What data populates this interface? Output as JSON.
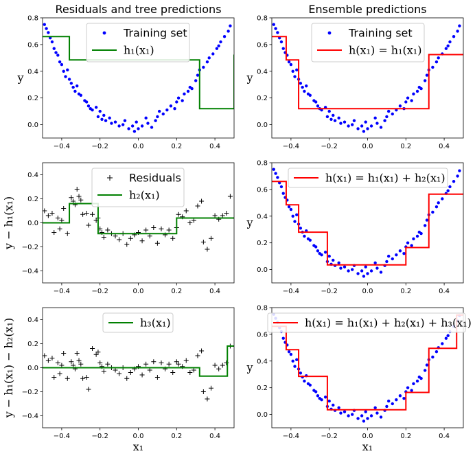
{
  "chart_data": [
    {
      "type": "scatter",
      "title": "Residuals and tree predictions",
      "xlabel": "",
      "ylabel": "y",
      "xlim": [
        -0.5,
        0.5
      ],
      "ylim": [
        -0.1,
        0.8
      ],
      "xticks": [
        -0.4,
        -0.2,
        0.0,
        0.2,
        0.4
      ],
      "xticklabels": [
        "−0.4",
        "−0.2",
        "0.0",
        "0.2",
        "0.4"
      ],
      "yticks": [
        0.0,
        0.2,
        0.4,
        0.6,
        0.8
      ],
      "yticklabels": [
        "0.0",
        "0.2",
        "0.4",
        "0.6",
        "0.8"
      ],
      "points_series": "training",
      "points_color": "#0000ff",
      "points_marker": "dot",
      "legend": {
        "position": "upper-center",
        "entries": [
          {
            "label": "Training set",
            "marker": "dot",
            "color": "#0000ff"
          },
          {
            "label": "h₁(x₁)",
            "marker": "line",
            "color": "#008000"
          }
        ]
      },
      "step": {
        "color": "#008000",
        "breaks": [
          -0.36,
          0.32
        ],
        "levels": [
          0.66,
          0.485,
          0.12,
          0.525
        ],
        "lead": -0.425
      }
    },
    {
      "type": "scatter",
      "title": "Ensemble predictions",
      "xlabel": "",
      "ylabel": "y",
      "xlim": [
        -0.5,
        0.5
      ],
      "ylim": [
        -0.1,
        0.8
      ],
      "xticks": [
        -0.4,
        -0.2,
        0.0,
        0.2,
        0.4
      ],
      "xticklabels": [
        "−0.4",
        "−0.2",
        "0.0",
        "0.2",
        "0.4"
      ],
      "yticks": [
        0.0,
        0.2,
        0.4,
        0.6,
        0.8
      ],
      "yticklabels": [
        "0.0",
        "0.2",
        "0.4",
        "0.6",
        "0.8"
      ],
      "points_series": "training",
      "points_color": "#0000ff",
      "points_marker": "dot",
      "legend": {
        "position": "upper-center",
        "entries": [
          {
            "label": "Training set",
            "marker": "dot",
            "color": "#0000ff"
          },
          {
            "label": "h(x₁) = h₁(x₁)",
            "marker": "line",
            "color": "#ff0000"
          }
        ]
      },
      "step": {
        "color": "#ff0000",
        "breaks": [
          -0.425,
          -0.36,
          0.32
        ],
        "levels": [
          0.66,
          0.485,
          0.12,
          0.525
        ]
      }
    },
    {
      "type": "scatter",
      "title": "",
      "xlabel": "",
      "ylabel": "y − h₁(x₁)",
      "xlim": [
        -0.5,
        0.5
      ],
      "ylim": [
        -0.5,
        0.5
      ],
      "xticks": [
        -0.4,
        -0.2,
        0.0,
        0.2,
        0.4
      ],
      "xticklabels": [
        "−0.4",
        "−0.2",
        "0.0",
        "0.2",
        "0.4"
      ],
      "yticks": [
        -0.4,
        -0.2,
        0.0,
        0.2,
        0.4
      ],
      "yticklabels": [
        "−0.4",
        "−0.2",
        "0.0",
        "0.2",
        "0.4"
      ],
      "points_series": "residuals1",
      "points_color": "#000000",
      "points_marker": "plus",
      "legend": {
        "position": "upper-center",
        "entries": [
          {
            "label": "Residuals",
            "marker": "plus",
            "color": "#000000"
          },
          {
            "label": "h₂(x₁)",
            "marker": "line",
            "color": "#008000"
          }
        ]
      },
      "step": {
        "color": "#008000",
        "breaks": [
          -0.36,
          -0.21,
          0.2
        ],
        "levels": [
          0.0,
          0.16,
          -0.09,
          0.04
        ]
      }
    },
    {
      "type": "scatter",
      "title": "",
      "xlabel": "",
      "ylabel": "y",
      "xlim": [
        -0.5,
        0.5
      ],
      "ylim": [
        -0.1,
        0.8
      ],
      "xticks": [
        -0.4,
        -0.2,
        0.0,
        0.2,
        0.4
      ],
      "xticklabels": [
        "−0.4",
        "−0.2",
        "0.0",
        "0.2",
        "0.4"
      ],
      "yticks": [
        0.0,
        0.2,
        0.4,
        0.6,
        0.8
      ],
      "yticklabels": [
        "0.0",
        "0.2",
        "0.4",
        "0.6",
        "0.8"
      ],
      "points_series": "training",
      "points_color": "#0000ff",
      "points_marker": "dot",
      "legend": {
        "position": "upper-center",
        "entries": [
          {
            "label": "h(x₁) = h₁(x₁) + h₂(x₁)",
            "marker": "line",
            "color": "#ff0000"
          }
        ]
      },
      "step": {
        "color": "#ff0000",
        "breaks": [
          -0.425,
          -0.36,
          -0.21,
          0.2,
          0.32
        ],
        "levels": [
          0.66,
          0.485,
          0.28,
          0.035,
          0.165,
          0.565
        ]
      }
    },
    {
      "type": "scatter",
      "title": "",
      "xlabel": "x₁",
      "ylabel": "y − h₁(x₁) − h₂(x₁)",
      "xlim": [
        -0.5,
        0.5
      ],
      "ylim": [
        -0.5,
        0.5
      ],
      "xticks": [
        -0.4,
        -0.2,
        0.0,
        0.2,
        0.4
      ],
      "xticklabels": [
        "−0.4",
        "−0.2",
        "0.0",
        "0.2",
        "0.4"
      ],
      "yticks": [
        -0.4,
        -0.2,
        0.0,
        0.2,
        0.4
      ],
      "yticklabels": [
        "−0.4",
        "−0.2",
        "0.0",
        "0.2",
        "0.4"
      ],
      "points_series": "residuals2",
      "points_color": "#000000",
      "points_marker": "plus",
      "legend": {
        "position": "upper-center",
        "entries": [
          {
            "label": "h₃(x₁)",
            "marker": "line",
            "color": "#008000"
          }
        ]
      },
      "step": {
        "color": "#008000",
        "breaks": [
          0.32,
          0.465
        ],
        "levels": [
          0.0,
          -0.07,
          0.18
        ]
      }
    },
    {
      "type": "scatter",
      "title": "",
      "xlabel": "x₁",
      "ylabel": "y",
      "xlim": [
        -0.5,
        0.5
      ],
      "ylim": [
        -0.1,
        0.8
      ],
      "xticks": [
        -0.4,
        -0.2,
        0.0,
        0.2,
        0.4
      ],
      "xticklabels": [
        "−0.4",
        "−0.2",
        "0.0",
        "0.2",
        "0.4"
      ],
      "yticks": [
        0.0,
        0.2,
        0.4,
        0.6,
        0.8
      ],
      "yticklabels": [
        "0.0",
        "0.2",
        "0.4",
        "0.6",
        "0.8"
      ],
      "points_series": "training",
      "points_color": "#0000ff",
      "points_marker": "dot",
      "legend": {
        "position": "upper-center",
        "entries": [
          {
            "label": "h(x₁) = h₁(x₁) + h₂(x₁) + h₃(x₁)",
            "marker": "line",
            "color": "#ff0000"
          }
        ]
      },
      "step": {
        "color": "#ff0000",
        "breaks": [
          -0.425,
          -0.36,
          -0.21,
          0.2,
          0.32,
          0.465
        ],
        "levels": [
          0.66,
          0.485,
          0.285,
          0.035,
          0.165,
          0.495,
          0.745
        ]
      }
    }
  ],
  "series_data": {
    "training": {
      "x": [
        -0.49,
        -0.48,
        -0.47,
        -0.46,
        -0.45,
        -0.44,
        -0.43,
        -0.42,
        -0.41,
        -0.4,
        -0.39,
        -0.38,
        -0.37,
        -0.36,
        -0.35,
        -0.34,
        -0.33,
        -0.32,
        -0.31,
        -0.3,
        -0.28,
        -0.27,
        -0.26,
        -0.25,
        -0.24,
        -0.22,
        -0.21,
        -0.2,
        -0.19,
        -0.18,
        -0.17,
        -0.15,
        -0.14,
        -0.12,
        -0.1,
        -0.08,
        -0.07,
        -0.05,
        -0.03,
        -0.02,
        -0.01,
        0.0,
        0.02,
        0.04,
        0.05,
        0.07,
        0.09,
        0.1,
        0.11,
        0.13,
        0.15,
        0.17,
        0.19,
        0.2,
        0.21,
        0.23,
        0.24,
        0.26,
        0.27,
        0.28,
        0.3,
        0.31,
        0.32,
        0.34,
        0.36,
        0.37,
        0.39,
        0.41,
        0.42,
        0.43,
        0.45,
        0.47,
        0.48
      ],
      "y": [
        0.75,
        0.72,
        0.69,
        0.65,
        0.62,
        0.57,
        0.54,
        0.52,
        0.47,
        0.45,
        0.4,
        0.36,
        0.41,
        0.34,
        0.31,
        0.28,
        0.25,
        0.29,
        0.23,
        0.22,
        0.18,
        0.17,
        0.14,
        0.12,
        0.11,
        0.13,
        0.06,
        0.1,
        0.04,
        0.07,
        0.03,
        0.05,
        0.01,
        0.02,
        -0.01,
        0.0,
        0.03,
        -0.03,
        -0.01,
        -0.05,
        0.02,
        -0.03,
        -0.01,
        0.05,
        0.01,
        -0.02,
        0.03,
        0.06,
        0.1,
        0.08,
        0.11,
        0.14,
        0.12,
        0.17,
        0.2,
        0.18,
        0.23,
        0.25,
        0.28,
        0.27,
        0.33,
        0.37,
        0.41,
        0.43,
        0.47,
        0.5,
        0.53,
        0.57,
        0.59,
        0.62,
        0.66,
        0.7,
        0.74
      ]
    },
    "residuals1": {
      "x": [
        -0.49,
        -0.47,
        -0.45,
        -0.44,
        -0.42,
        -0.41,
        -0.4,
        -0.39,
        -0.37,
        -0.35,
        -0.34,
        -0.33,
        -0.32,
        -0.31,
        -0.3,
        -0.29,
        -0.27,
        -0.26,
        -0.24,
        -0.22,
        -0.21,
        -0.2,
        -0.19,
        -0.18,
        -0.16,
        -0.14,
        -0.12,
        -0.1,
        -0.08,
        -0.06,
        -0.04,
        -0.02,
        0.0,
        0.02,
        0.04,
        0.06,
        0.08,
        0.1,
        0.12,
        0.14,
        0.16,
        0.18,
        0.2,
        0.21,
        0.23,
        0.25,
        0.27,
        0.29,
        0.31,
        0.33,
        0.34,
        0.36,
        0.38,
        0.4,
        0.42,
        0.44,
        0.46,
        0.48
      ],
      "y": [
        0.1,
        0.06,
        0.08,
        -0.08,
        0.04,
        -0.05,
        0.02,
        0.12,
        -0.09,
        0.21,
        0.18,
        0.15,
        0.28,
        0.22,
        0.19,
        0.07,
        0.08,
        -0.02,
        0.07,
        0.02,
        0.04,
        -0.05,
        -0.08,
        -0.12,
        -0.06,
        -0.09,
        -0.11,
        -0.14,
        -0.09,
        -0.18,
        -0.13,
        -0.1,
        -0.08,
        -0.15,
        -0.06,
        -0.11,
        -0.04,
        -0.17,
        -0.05,
        -0.1,
        -0.06,
        -0.13,
        -0.04,
        0.07,
        0.05,
        0.1,
        0.0,
        0.02,
        0.14,
        0.18,
        -0.16,
        -0.22,
        -0.13,
        0.06,
        0.03,
        0.06,
        0.08,
        0.22
      ]
    },
    "residuals2": {
      "x": [
        -0.49,
        -0.47,
        -0.45,
        -0.44,
        -0.42,
        -0.41,
        -0.4,
        -0.39,
        -0.37,
        -0.35,
        -0.34,
        -0.33,
        -0.32,
        -0.31,
        -0.3,
        -0.29,
        -0.27,
        -0.26,
        -0.24,
        -0.22,
        -0.21,
        -0.2,
        -0.19,
        -0.18,
        -0.16,
        -0.14,
        -0.12,
        -0.1,
        -0.08,
        -0.06,
        -0.04,
        -0.02,
        0.0,
        0.02,
        0.04,
        0.06,
        0.08,
        0.1,
        0.12,
        0.14,
        0.16,
        0.18,
        0.2,
        0.21,
        0.23,
        0.25,
        0.27,
        0.29,
        0.31,
        0.33,
        0.34,
        0.36,
        0.38,
        0.4,
        0.42,
        0.44,
        0.46,
        0.48
      ],
      "y": [
        0.1,
        0.06,
        0.08,
        -0.08,
        0.04,
        -0.05,
        0.02,
        0.12,
        -0.09,
        0.05,
        0.02,
        -0.01,
        0.12,
        0.06,
        0.03,
        -0.09,
        -0.08,
        -0.18,
        0.16,
        0.11,
        0.13,
        0.04,
        0.01,
        -0.03,
        0.03,
        0.0,
        -0.02,
        -0.05,
        0.0,
        -0.09,
        -0.04,
        -0.01,
        0.01,
        -0.06,
        0.03,
        -0.02,
        0.05,
        -0.08,
        0.04,
        -0.01,
        0.03,
        -0.04,
        0.05,
        0.03,
        0.01,
        0.06,
        -0.04,
        -0.02,
        0.1,
        0.14,
        -0.2,
        -0.26,
        -0.17,
        0.02,
        -0.01,
        0.02,
        0.04,
        0.18
      ]
    }
  }
}
